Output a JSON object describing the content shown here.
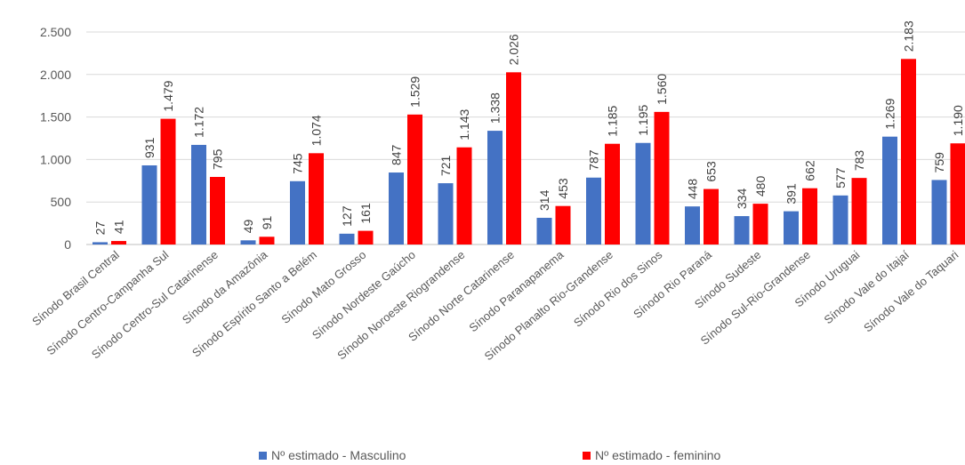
{
  "chart_data": {
    "type": "bar",
    "categories": [
      "Sínodo Brasil Central",
      "Sínodo Centro-Campanha Sul",
      "Sínodo Centro-Sul Catarinense",
      "Sínodo da Amazônia",
      "Sínodo Espírito Santo a Belém",
      "Sínodo Mato Grosso",
      "Sínodo Nordeste Gaúcho",
      "Sínodo Noroeste Riograndense",
      "Sínodo Norte Catarinense",
      "Sínodo Paranapanema",
      "Sínodo Planalto Rio-Grandense",
      "Sínodo Rio dos Sinos",
      "Sínodo Rio Paraná",
      "Sínodo Sudeste",
      "Sínodo Sul-Rio-Grandense",
      "Sínodo Uruguai",
      "Sínodo Vale do Itajaí",
      "Sínodo Vale do Taquari"
    ],
    "series": [
      {
        "name": "Nº estimado - Masculino",
        "color": "#4472C4",
        "values": [
          27,
          931,
          1172,
          49,
          745,
          127,
          847,
          721,
          1338,
          314,
          787,
          1195,
          448,
          334,
          391,
          577,
          1269,
          759
        ],
        "labels": [
          "27",
          "931",
          "1.172",
          "49",
          "745",
          "127",
          "847",
          "721",
          "1.338",
          "314",
          "787",
          "1.195",
          "448",
          "334",
          "391",
          "577",
          "1.269",
          "759"
        ]
      },
      {
        "name": "Nº estimado - feminino",
        "color": "#FF0000",
        "values": [
          41,
          1479,
          795,
          91,
          1074,
          161,
          1529,
          1143,
          2026,
          453,
          1185,
          1560,
          653,
          480,
          662,
          783,
          2183,
          1190
        ],
        "labels": [
          "41",
          "1.479",
          "795",
          "91",
          "1.074",
          "161",
          "1.529",
          "1.143",
          "2.026",
          "453",
          "1.185",
          "1.560",
          "653",
          "480",
          "662",
          "783",
          "2.183",
          "1.190"
        ]
      }
    ],
    "ylim": [
      0,
      2500
    ],
    "yticks": [
      0,
      500,
      1000,
      1500,
      2000,
      2500
    ],
    "ytick_labels": [
      "0",
      "500",
      "1.000",
      "1.500",
      "2.000",
      "2.500"
    ],
    "grid": true,
    "legend_position": "bottom"
  }
}
